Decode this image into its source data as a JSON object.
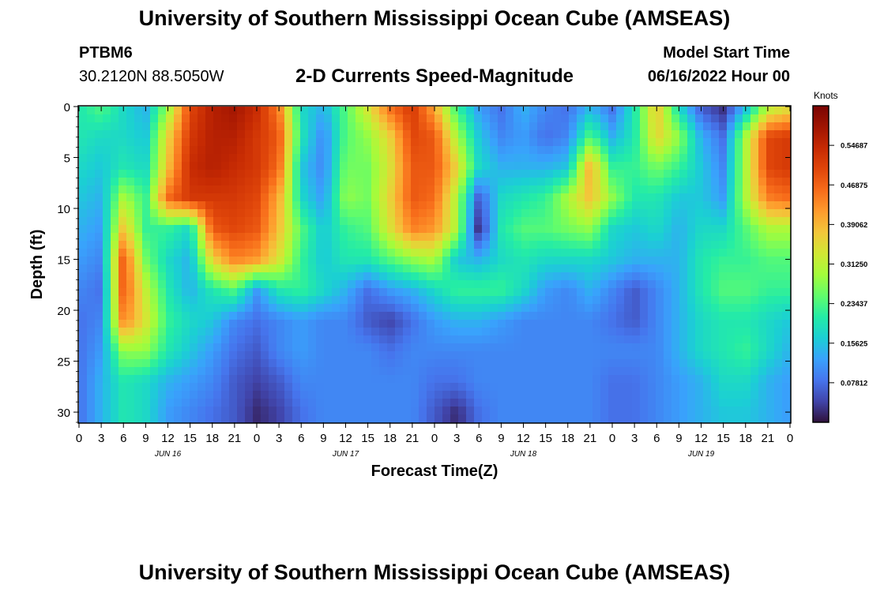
{
  "header": {
    "title": "University of Southern Mississippi Ocean Cube (AMSEAS)",
    "station_id": "PTBM6",
    "station_coords": "30.2120N  88.5050W",
    "plot_title": "2-D Currents Speed-Magnitude",
    "model_start_label": "Model Start Time",
    "model_start_value": "06/16/2022 Hour 00"
  },
  "footer": {
    "title": "University of Southern Mississippi Ocean Cube (AMSEAS)"
  },
  "chart_data": {
    "type": "heatmap",
    "title": "2-D Currents Speed-Magnitude",
    "xlabel": "Forecast Time(Z)",
    "ylabel": "Depth (ft)",
    "x_tick_labels": [
      "0",
      "3",
      "6",
      "9",
      "12",
      "15",
      "18",
      "21",
      "0",
      "3",
      "6",
      "9",
      "12",
      "15",
      "18",
      "21",
      "0",
      "3",
      "6",
      "9",
      "12",
      "15",
      "18",
      "21",
      "0",
      "3",
      "6",
      "9",
      "12",
      "15",
      "18",
      "21",
      "0"
    ],
    "x_range_hours": [
      0,
      96
    ],
    "day_labels": [
      {
        "label": "JUN 16",
        "hour": 12
      },
      {
        "label": "JUN 17",
        "hour": 36
      },
      {
        "label": "JUN 18",
        "hour": 60
      },
      {
        "label": "JUN 19",
        "hour": 84
      }
    ],
    "y_ticks": [
      "0",
      "5",
      "10",
      "15",
      "20",
      "25",
      "30"
    ],
    "y_range_ft": [
      0,
      31
    ],
    "y_inverted": true,
    "colorbar": {
      "label": "Knots",
      "ticks": [
        "0.54687",
        "0.46875",
        "0.39062",
        "0.31250",
        "0.23437",
        "0.15625",
        "0.07812"
      ],
      "tick_values": [
        0.54687,
        0.46875,
        0.39062,
        0.3125,
        0.23437,
        0.15625,
        0.07812
      ],
      "range": [
        0,
        0.625
      ]
    },
    "speed_knots": {
      "depth_levels_ft": [
        0,
        3,
        6,
        9,
        12,
        15,
        18,
        21,
        24,
        27,
        30
      ],
      "time_hours": [
        0,
        3,
        6,
        9,
        12,
        15,
        18,
        21,
        24,
        27,
        30,
        33,
        36,
        39,
        42,
        45,
        48,
        51,
        54,
        57,
        60,
        63,
        66,
        69,
        72,
        75,
        78,
        81,
        84,
        87,
        90,
        93,
        96
      ],
      "values": [
        [
          0.2,
          0.24,
          0.18,
          0.14,
          0.28,
          0.5,
          0.56,
          0.58,
          0.54,
          0.44,
          0.18,
          0.14,
          0.24,
          0.34,
          0.46,
          0.52,
          0.4,
          0.22,
          0.12,
          0.08,
          0.14,
          0.1,
          0.08,
          0.14,
          0.08,
          0.2,
          0.38,
          0.18,
          0.06,
          0.02,
          0.14,
          0.3,
          0.34
        ],
        [
          0.2,
          0.18,
          0.18,
          0.16,
          0.36,
          0.52,
          0.56,
          0.56,
          0.52,
          0.48,
          0.2,
          0.1,
          0.24,
          0.28,
          0.36,
          0.5,
          0.48,
          0.3,
          0.16,
          0.1,
          0.12,
          0.08,
          0.1,
          0.24,
          0.14,
          0.2,
          0.36,
          0.28,
          0.14,
          0.08,
          0.3,
          0.5,
          0.52
        ],
        [
          0.18,
          0.16,
          0.2,
          0.18,
          0.38,
          0.54,
          0.56,
          0.54,
          0.52,
          0.46,
          0.16,
          0.1,
          0.26,
          0.26,
          0.34,
          0.48,
          0.48,
          0.36,
          0.18,
          0.14,
          0.14,
          0.14,
          0.16,
          0.4,
          0.22,
          0.22,
          0.26,
          0.22,
          0.16,
          0.1,
          0.3,
          0.5,
          0.52
        ],
        [
          0.16,
          0.14,
          0.3,
          0.22,
          0.46,
          0.52,
          0.52,
          0.52,
          0.5,
          0.4,
          0.18,
          0.12,
          0.28,
          0.26,
          0.36,
          0.48,
          0.46,
          0.3,
          0.06,
          0.18,
          0.2,
          0.22,
          0.3,
          0.38,
          0.28,
          0.2,
          0.2,
          0.16,
          0.16,
          0.12,
          0.3,
          0.44,
          0.46
        ],
        [
          0.14,
          0.12,
          0.38,
          0.22,
          0.22,
          0.18,
          0.48,
          0.5,
          0.48,
          0.38,
          0.24,
          0.16,
          0.22,
          0.24,
          0.34,
          0.44,
          0.42,
          0.3,
          0.02,
          0.2,
          0.24,
          0.24,
          0.26,
          0.28,
          0.18,
          0.16,
          0.18,
          0.14,
          0.18,
          0.18,
          0.24,
          0.3,
          0.3
        ],
        [
          0.12,
          0.1,
          0.48,
          0.26,
          0.18,
          0.14,
          0.36,
          0.44,
          0.42,
          0.34,
          0.22,
          0.16,
          0.2,
          0.2,
          0.24,
          0.28,
          0.3,
          0.16,
          0.14,
          0.18,
          0.2,
          0.18,
          0.18,
          0.18,
          0.16,
          0.14,
          0.14,
          0.14,
          0.2,
          0.22,
          0.22,
          0.24,
          0.24
        ],
        [
          0.1,
          0.08,
          0.48,
          0.32,
          0.2,
          0.14,
          0.2,
          0.24,
          0.12,
          0.2,
          0.22,
          0.18,
          0.14,
          0.08,
          0.12,
          0.14,
          0.18,
          0.22,
          0.22,
          0.22,
          0.18,
          0.12,
          0.1,
          0.14,
          0.1,
          0.06,
          0.1,
          0.14,
          0.2,
          0.24,
          0.24,
          0.22,
          0.22
        ],
        [
          0.08,
          0.1,
          0.44,
          0.34,
          0.22,
          0.18,
          0.16,
          0.1,
          0.08,
          0.1,
          0.12,
          0.1,
          0.1,
          0.06,
          0.04,
          0.08,
          0.12,
          0.14,
          0.14,
          0.12,
          0.1,
          0.1,
          0.1,
          0.1,
          0.08,
          0.06,
          0.1,
          0.14,
          0.18,
          0.2,
          0.2,
          0.18,
          0.16
        ],
        [
          0.08,
          0.12,
          0.28,
          0.28,
          0.2,
          0.16,
          0.12,
          0.08,
          0.06,
          0.1,
          0.12,
          0.1,
          0.1,
          0.1,
          0.08,
          0.1,
          0.1,
          0.1,
          0.1,
          0.1,
          0.1,
          0.1,
          0.1,
          0.1,
          0.1,
          0.1,
          0.1,
          0.14,
          0.18,
          0.2,
          0.22,
          0.18,
          0.14
        ],
        [
          0.08,
          0.14,
          0.2,
          0.18,
          0.14,
          0.12,
          0.1,
          0.06,
          0.04,
          0.06,
          0.1,
          0.1,
          0.1,
          0.1,
          0.1,
          0.1,
          0.08,
          0.08,
          0.1,
          0.1,
          0.1,
          0.1,
          0.1,
          0.1,
          0.08,
          0.08,
          0.1,
          0.12,
          0.14,
          0.18,
          0.18,
          0.14,
          0.12
        ],
        [
          0.08,
          0.14,
          0.2,
          0.18,
          0.12,
          0.1,
          0.08,
          0.06,
          0.02,
          0.04,
          0.08,
          0.1,
          0.1,
          0.1,
          0.1,
          0.1,
          0.06,
          0.02,
          0.08,
          0.1,
          0.1,
          0.1,
          0.1,
          0.1,
          0.08,
          0.08,
          0.1,
          0.12,
          0.14,
          0.16,
          0.16,
          0.14,
          0.12
        ]
      ]
    }
  }
}
